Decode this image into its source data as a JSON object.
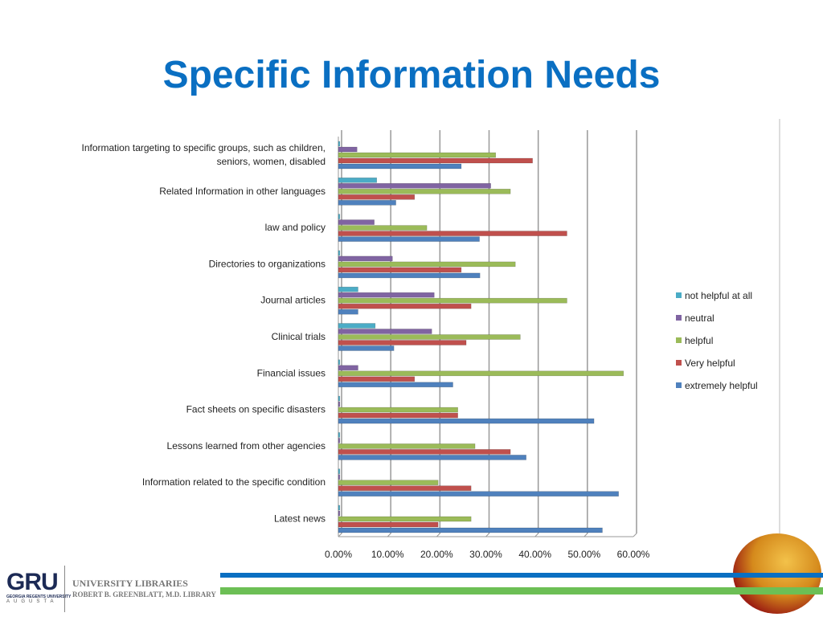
{
  "title": "Specific Information Needs",
  "chart_data": {
    "type": "bar",
    "orientation": "horizontal",
    "title": "",
    "xlabel": "",
    "ylabel": "",
    "xlim": [
      0,
      60
    ],
    "x_ticks": [
      "0.00%",
      "10.00%",
      "20.00%",
      "30.00%",
      "40.00%",
      "50.00%",
      "60.00%"
    ],
    "grid": true,
    "legend_position": "right",
    "categories": [
      [
        "Information targeting to specific groups, such as children,",
        "seniors, women, disabled"
      ],
      [
        "Related Information in other languages"
      ],
      [
        "law and policy"
      ],
      [
        "Directories to organizations"
      ],
      [
        "Journal articles"
      ],
      [
        "Clinical trials"
      ],
      [
        "Financial issues"
      ],
      [
        "Fact sheets on specific disasters"
      ],
      [
        "Lessons learned from other agencies"
      ],
      [
        "Information related to the specific condition"
      ],
      [
        "Latest news"
      ]
    ],
    "series": [
      {
        "name": "not helpful at all",
        "color": "#4bacc6",
        "values": [
          0.3,
          7.8,
          0.3,
          0.3,
          4.0,
          7.5,
          0.3,
          0.3,
          0.3,
          0.3,
          0.3
        ]
      },
      {
        "name": "neutral",
        "color": "#8064a2",
        "values": [
          3.8,
          31.0,
          7.3,
          11.0,
          19.5,
          19.0,
          4.0,
          0.3,
          0.3,
          0.3,
          0.3
        ]
      },
      {
        "name": "helpful",
        "color": "#9bbb59",
        "values": [
          32.0,
          35.0,
          18.0,
          36.0,
          46.5,
          37.0,
          58.0,
          24.3,
          27.8,
          20.3,
          27.0
        ]
      },
      {
        "name": "Very helpful",
        "color": "#c0504d",
        "values": [
          39.5,
          15.5,
          46.5,
          25.0,
          27.0,
          26.0,
          15.5,
          24.3,
          35.0,
          27.0,
          20.3
        ]
      },
      {
        "name": "extremely helpful",
        "color": "#4f81bd",
        "values": [
          25.0,
          11.7,
          28.7,
          28.8,
          4.0,
          11.3,
          23.3,
          52.0,
          38.2,
          57.0,
          53.7
        ]
      }
    ]
  },
  "footer": {
    "logo": "GRU",
    "logo_sub": "GEORGIA REGENTS UNIVERSITY",
    "logo_city": "AUGUSTA",
    "library_line1": "UNIVERSITY LIBRARIES",
    "library_line2": "ROBERT B. GREENBLATT, M.D. LIBRARY"
  }
}
